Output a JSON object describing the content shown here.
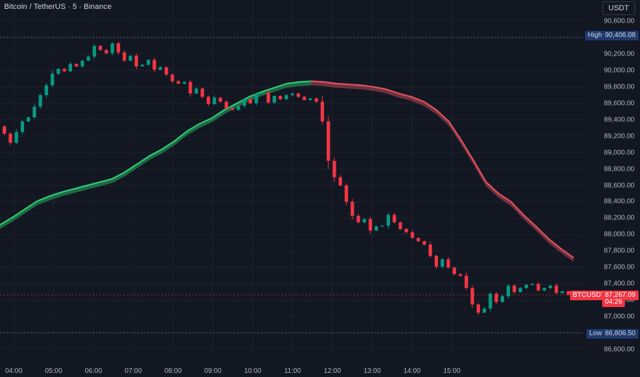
{
  "header": {
    "title": "Bitcoin / TetherUS · 5 · Binance",
    "unit_button": "USDT"
  },
  "price_axis": {
    "labels": [
      "90,600.00",
      "90,400.00",
      "90,200.00",
      "90,000.00",
      "89,800.00",
      "89,600.00",
      "89,400.00",
      "89,200.00",
      "89,000.00",
      "88,800.00",
      "88,600.00",
      "88,400.00",
      "88,200.00",
      "88,000.00",
      "87,800.00",
      "87,600.00",
      "87,400.00",
      "87,200.00",
      "87,000.00",
      "86,800.00",
      "86,600.00"
    ]
  },
  "time_axis": {
    "labels": [
      "04:00",
      "05:00",
      "06:00",
      "07:00",
      "08:00",
      "09:00",
      "10:00",
      "11:00",
      "12:00",
      "13:00",
      "14:00",
      "15:00"
    ]
  },
  "markers": {
    "high_label": "High",
    "high_value": "90,406.08",
    "low_label": "Low",
    "low_value": "86,806.50",
    "symbol": "BTCUSDT",
    "last_price": "87,267.09",
    "countdown": "04:26"
  },
  "colors": {
    "background": "#131722",
    "up": "#089981",
    "down": "#f23645",
    "ma_up": "#2ecc71",
    "ma_down": "#e05260",
    "grid": "#1e222d"
  },
  "chart_data": {
    "type": "candlestick",
    "ylim": [
      86500,
      90700
    ],
    "x_range": [
      "03:50",
      "15:25"
    ],
    "price_ticks": [
      90600,
      90400,
      90200,
      90000,
      89800,
      89600,
      89400,
      89200,
      89000,
      88800,
      88600,
      88400,
      88200,
      88000,
      87800,
      87600,
      87400,
      87200,
      87000,
      86800,
      86600
    ],
    "time_ticks": [
      "04:00",
      "05:00",
      "06:00",
      "07:00",
      "08:00",
      "09:00",
      "10:00",
      "11:00",
      "12:00",
      "13:00",
      "14:00",
      "15:00"
    ],
    "high": 90406.08,
    "low": 86806.5,
    "last": 87267.09,
    "closes": [
      89230,
      89120,
      89250,
      89380,
      89430,
      89560,
      89700,
      89820,
      89960,
      90020,
      89990,
      90080,
      90050,
      90120,
      90170,
      90300,
      90250,
      90210,
      90330,
      90220,
      90120,
      90180,
      90050,
      90070,
      90130,
      90010,
      90040,
      89950,
      89870,
      89840,
      89860,
      89720,
      89780,
      89680,
      89590,
      89670,
      89620,
      89540,
      89520,
      89570,
      89650,
      89600,
      89720,
      89730,
      89610,
      89690,
      89650,
      89700,
      89720,
      89680,
      89640,
      89660,
      89620,
      89380,
      88900,
      88700,
      88600,
      88400,
      88230,
      88150,
      88190,
      88050,
      88100,
      88110,
      88240,
      88150,
      88070,
      88030,
      87960,
      87920,
      87880,
      87740,
      87610,
      87700,
      87600,
      87520,
      87500,
      87350,
      87150,
      87050,
      87100,
      87280,
      87180,
      87250,
      87380,
      87300,
      87350,
      87390,
      87400,
      87320,
      87350,
      87380,
      87290,
      87310,
      87270
    ],
    "ma_series": [
      {
        "name": "",
        "values": [
          88120,
          88210,
          88310,
          88410,
          88470,
          88520,
          88560,
          88600,
          88640,
          88680,
          88760,
          88860,
          88960,
          89040,
          89140,
          89260,
          89350,
          89420,
          89520,
          89600,
          89680,
          89740,
          89790,
          89840,
          89860,
          89870,
          89860,
          89840,
          89830,
          89820,
          89800,
          89770,
          89720,
          89680,
          89620,
          89520,
          89380,
          89150,
          88900,
          88640,
          88500,
          88400,
          88240,
          88100,
          87950,
          87830,
          87720
        ]
      }
    ]
  }
}
